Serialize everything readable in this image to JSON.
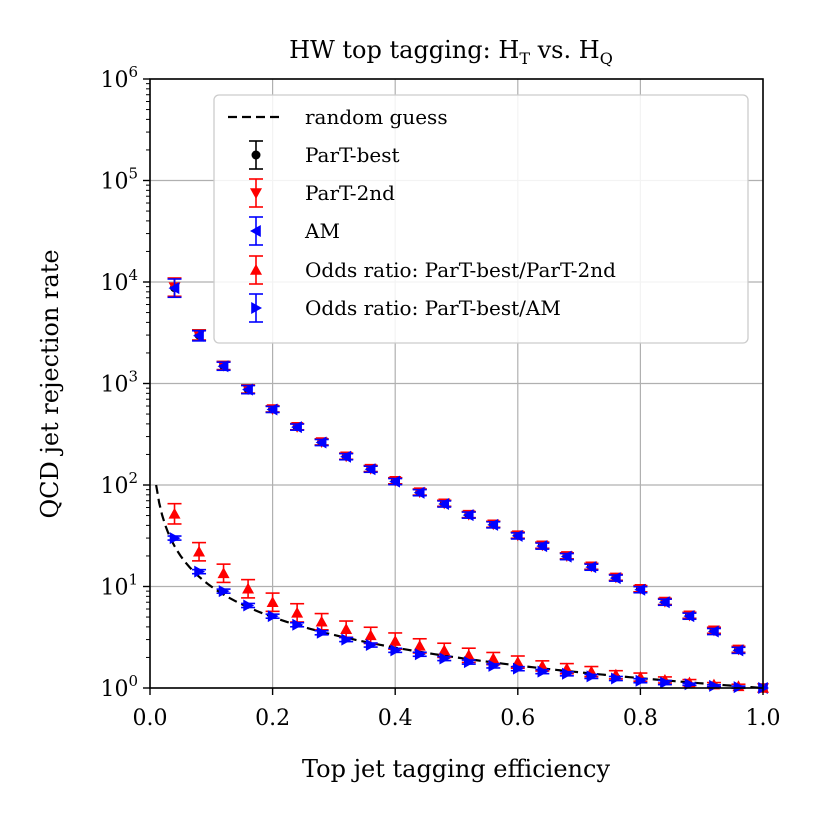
{
  "chart_data": {
    "type": "scatter",
    "title": "HW top tagging: H",
    "title_sub_1": "T",
    "title_mid": " vs. H",
    "title_sub_2": "Q",
    "xlabel": "Top jet tagging efficiency",
    "ylabel": "QCD jet rejection rate",
    "xlim": [
      0.0,
      1.0
    ],
    "ylim": [
      1,
      1000000
    ],
    "yscale": "log",
    "grid": true,
    "legend_position": "top-right",
    "x_ticks": [
      {
        "value": 0.0,
        "label": "0.0"
      },
      {
        "value": 0.2,
        "label": "0.2"
      },
      {
        "value": 0.4,
        "label": "0.4"
      },
      {
        "value": 0.6,
        "label": "0.6"
      },
      {
        "value": 0.8,
        "label": "0.8"
      },
      {
        "value": 1.0,
        "label": "1.0"
      }
    ],
    "y_ticks": [
      {
        "exp": 0,
        "base": "10",
        "power": "0"
      },
      {
        "exp": 1,
        "base": "10",
        "power": "1"
      },
      {
        "exp": 2,
        "base": "10",
        "power": "2"
      },
      {
        "exp": 3,
        "base": "10",
        "power": "3"
      },
      {
        "exp": 4,
        "base": "10",
        "power": "4"
      },
      {
        "exp": 5,
        "base": "10",
        "power": "5"
      },
      {
        "exp": 6,
        "base": "10",
        "power": "6"
      }
    ],
    "x": [
      0.04,
      0.08,
      0.12,
      0.16,
      0.2,
      0.24,
      0.28,
      0.32,
      0.36,
      0.4,
      0.44,
      0.48,
      0.52,
      0.56,
      0.6,
      0.64,
      0.68,
      0.72,
      0.76,
      0.8,
      0.84,
      0.88,
      0.92,
      0.96,
      1.0
    ],
    "random_guess": {
      "name": "random guess",
      "color": "#000000",
      "x_start": 0.01,
      "x_end": 1.0
    },
    "series": [
      {
        "name": "ParT-best",
        "color": "#000000",
        "marker": "circle",
        "values": [
          8800,
          3000,
          1500,
          880,
          560,
          375,
          265,
          192,
          145,
          110,
          85,
          66,
          51,
          41,
          32,
          25.5,
          20,
          15.8,
          12.3,
          9.5,
          7.1,
          5.2,
          3.7,
          2.4,
          1.0
        ],
        "errors": [
          0.09,
          0.05,
          0.04,
          0.04,
          0.03,
          0.03,
          0.03,
          0.03,
          0.03,
          0.03,
          0.03,
          0.03,
          0.03,
          0.03,
          0.03,
          0.03,
          0.03,
          0.03,
          0.03,
          0.03,
          0.03,
          0.03,
          0.03,
          0.03,
          0.0
        ]
      },
      {
        "name": "ParT-2nd",
        "color": "#ff0000",
        "marker": "triangle-down",
        "values": [
          8900,
          3000,
          1500,
          880,
          560,
          375,
          265,
          192,
          145,
          110,
          85,
          66,
          51,
          41,
          32,
          25.5,
          20,
          15.8,
          12.3,
          9.5,
          7.1,
          5.2,
          3.7,
          2.4,
          1.0
        ],
        "errors": [
          0.09,
          0.05,
          0.04,
          0.04,
          0.03,
          0.03,
          0.03,
          0.03,
          0.03,
          0.03,
          0.03,
          0.03,
          0.03,
          0.03,
          0.03,
          0.03,
          0.03,
          0.03,
          0.03,
          0.03,
          0.03,
          0.03,
          0.03,
          0.03,
          0.0
        ]
      },
      {
        "name": "AM",
        "color": "#0000ff",
        "marker": "triangle-left",
        "values": [
          8700,
          2950,
          1480,
          870,
          555,
          372,
          262,
          190,
          143,
          108,
          84,
          65,
          50.5,
          40.5,
          31.5,
          25,
          19.7,
          15.5,
          12.1,
          9.3,
          7.0,
          5.1,
          3.6,
          2.35,
          1.0
        ],
        "errors": [
          0.09,
          0.05,
          0.04,
          0.04,
          0.03,
          0.03,
          0.03,
          0.03,
          0.03,
          0.03,
          0.03,
          0.03,
          0.03,
          0.03,
          0.03,
          0.03,
          0.03,
          0.03,
          0.03,
          0.03,
          0.03,
          0.03,
          0.03,
          0.03,
          0.0
        ]
      },
      {
        "name": "Odds ratio: ParT-best/ParT-2nd",
        "color": "#ff0000",
        "marker": "triangle-up",
        "values": [
          52,
          22,
          13.5,
          9.5,
          7.0,
          5.5,
          4.5,
          3.8,
          3.3,
          2.9,
          2.6,
          2.35,
          2.1,
          1.95,
          1.8,
          1.65,
          1.55,
          1.45,
          1.35,
          1.28,
          1.2,
          1.13,
          1.08,
          1.04,
          1.0
        ],
        "errors": [
          0.1,
          0.09,
          0.09,
          0.09,
          0.09,
          0.09,
          0.08,
          0.08,
          0.08,
          0.08,
          0.07,
          0.07,
          0.07,
          0.06,
          0.06,
          0.05,
          0.05,
          0.05,
          0.04,
          0.04,
          0.03,
          0.03,
          0.02,
          0.02,
          0.0
        ]
      },
      {
        "name": "Odds ratio: ParT-best/AM",
        "color": "#0000ff",
        "marker": "triangle-right",
        "values": [
          30,
          14,
          9.0,
          6.5,
          5.1,
          4.2,
          3.5,
          3.0,
          2.65,
          2.35,
          2.15,
          1.95,
          1.8,
          1.65,
          1.55,
          1.45,
          1.38,
          1.3,
          1.24,
          1.18,
          1.13,
          1.09,
          1.05,
          1.02,
          1.0
        ],
        "errors": [
          0.02,
          0.02,
          0.02,
          0.02,
          0.02,
          0.02,
          0.02,
          0.02,
          0.02,
          0.02,
          0.02,
          0.02,
          0.02,
          0.02,
          0.02,
          0.02,
          0.02,
          0.02,
          0.02,
          0.02,
          0.02,
          0.01,
          0.01,
          0.01,
          0.0
        ]
      }
    ]
  }
}
